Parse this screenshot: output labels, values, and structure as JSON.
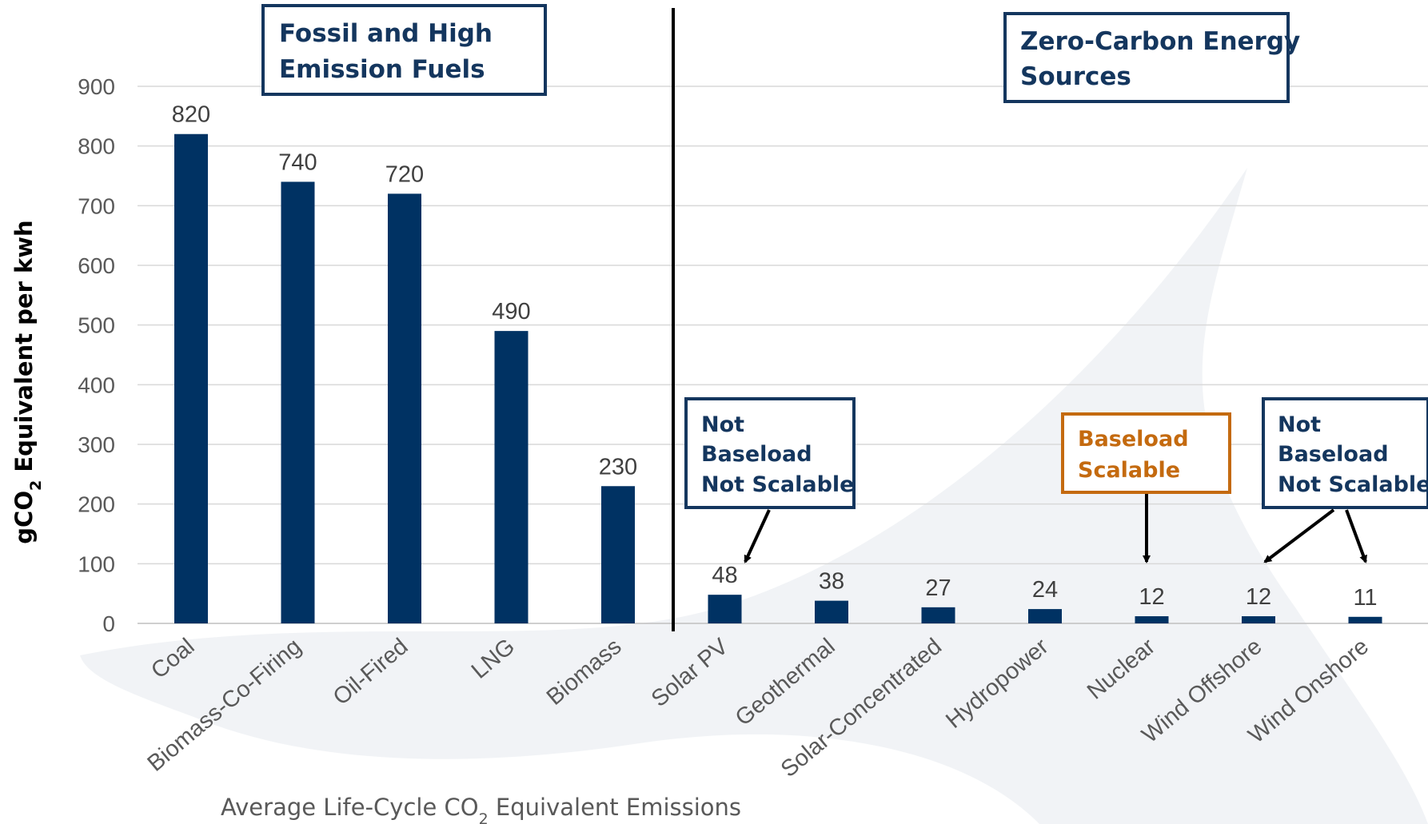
{
  "chart_data": {
    "type": "bar",
    "categories": [
      "Coal",
      "Biomass-Co-Firing",
      "Oil-Fired",
      "LNG",
      "Biomass",
      "Solar PV",
      "Geothermal",
      "Solar-Concentrated",
      "Hydropower",
      "Nuclear",
      "Wind Offshore",
      "Wind Onshore"
    ],
    "values": [
      820,
      740,
      720,
      490,
      230,
      48,
      38,
      27,
      24,
      12,
      12,
      11
    ],
    "ylabel_main": "gCO",
    "ylabel_sub": "2",
    "ylabel_rest": " Equivalent per kwh",
    "xlabel_main": "Average Life-Cycle CO",
    "xlabel_sub": "2",
    "xlabel_rest": " Equivalent Emissions",
    "ylim": [
      0,
      900
    ],
    "yticks": [
      0,
      100,
      200,
      300,
      400,
      500,
      600,
      700,
      800,
      900
    ],
    "grid": true,
    "bar_color": "#003263",
    "groups": [
      {
        "lines": [
          "Fossil and High",
          "Emission Fuels"
        ]
      },
      {
        "lines": [
          "Zero-Carbon Energy",
          "Sources"
        ]
      }
    ],
    "annotations": [
      {
        "lines": [
          "Not",
          "Baseload",
          "Not Scalable"
        ],
        "color": "#14365e",
        "targets": [
          "Solar PV"
        ]
      },
      {
        "lines": [
          "Baseload",
          "Scalable"
        ],
        "color": "#c46a0f",
        "targets": [
          "Nuclear"
        ]
      },
      {
        "lines": [
          "Not",
          "Baseload",
          "Not Scalable"
        ],
        "color": "#14365e",
        "targets": [
          "Wind Offshore",
          "Wind Onshore"
        ]
      }
    ]
  }
}
